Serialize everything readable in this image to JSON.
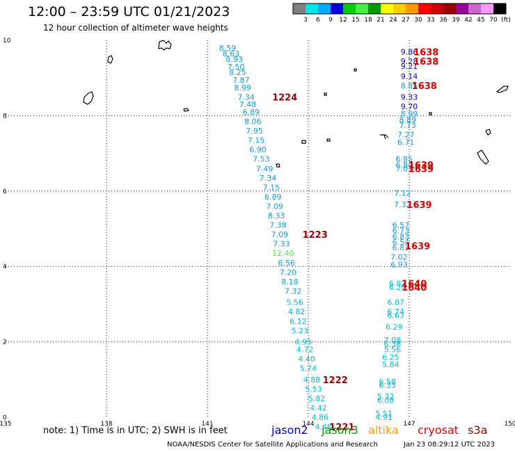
{
  "header": {
    "title": "12:00 – 23:59 UTC 01/21/2023",
    "subtitle": "12 hour collection of altimeter wave heights"
  },
  "colorbar": {
    "labels": [
      "3",
      "6",
      "9",
      "12",
      "15",
      "18",
      "21",
      "24",
      "27",
      "30",
      "33",
      "36",
      "39",
      "42",
      "45",
      "70",
      "(ft)"
    ],
    "colors": [
      "#7f7f7f",
      "#00e6e6",
      "#00aaff",
      "#0000dd",
      "#00cc00",
      "#44ee44",
      "#009900",
      "#ffff00",
      "#ffcc00",
      "#ff9900",
      "#ff0000",
      "#cc0000",
      "#990000",
      "#990099",
      "#cc66cc",
      "#ff99ff",
      "#000000"
    ]
  },
  "footer": {
    "note": "note:  1) Time is in UTC;  2) SWH is in feet",
    "credit": "NOAA/NESDIS Center for Satellite Applications and Research",
    "timestamp": "Jan 23 08:29:12 UTC 2023",
    "satellites": [
      {
        "name": "jason2",
        "color": "#0000cc"
      },
      {
        "name": "jason3",
        "color": "#009900"
      },
      {
        "name": "altika",
        "color": "#ff9900"
      },
      {
        "name": "cryosat",
        "color": "#dd0000"
      },
      {
        "name": "s3a",
        "color": "#990000"
      }
    ]
  },
  "chart_data": {
    "type": "scatter",
    "title": "12:00 – 23:59 UTC 01/21/2023",
    "subtitle": "12 hour collection of altimeter wave heights",
    "xlim": [
      135,
      150
    ],
    "ylim": [
      0,
      10
    ],
    "xticks": [
      135,
      138,
      141,
      144,
      147,
      150
    ],
    "yticks": [
      0,
      2,
      4,
      6,
      8,
      10
    ],
    "grid": true,
    "unit": "ft",
    "series": [
      {
        "name": "track-west",
        "points": [
          {
            "x": 141.6,
            "y": 9.8,
            "label": "8.59",
            "color": "#1199dd"
          },
          {
            "x": 141.7,
            "y": 9.65,
            "label": "8.63",
            "color": "#1199dd"
          },
          {
            "x": 141.8,
            "y": 9.5,
            "label": "8.93",
            "color": "#1199dd"
          },
          {
            "x": 141.85,
            "y": 9.3,
            "label": "7.50",
            "color": "#1199dd"
          },
          {
            "x": 141.9,
            "y": 9.15,
            "label": "8.25",
            "color": "#1199dd"
          },
          {
            "x": 142.0,
            "y": 8.95,
            "label": "7.87",
            "color": "#1199dd"
          },
          {
            "x": 142.05,
            "y": 8.75,
            "label": "8.99",
            "color": "#1199dd"
          },
          {
            "x": 142.15,
            "y": 8.5,
            "label": "7.34",
            "color": "#1199dd"
          },
          {
            "x": 142.2,
            "y": 8.3,
            "label": "7.48",
            "color": "#1199dd"
          },
          {
            "x": 142.3,
            "y": 8.1,
            "label": "6.89",
            "color": "#1199dd"
          },
          {
            "x": 142.35,
            "y": 7.85,
            "label": "8.06",
            "color": "#1199dd"
          },
          {
            "x": 142.4,
            "y": 7.6,
            "label": "7.95",
            "color": "#1199dd"
          },
          {
            "x": 142.45,
            "y": 7.35,
            "label": "7.15",
            "color": "#1199dd"
          },
          {
            "x": 142.5,
            "y": 7.1,
            "label": "6.90",
            "color": "#1199dd"
          },
          {
            "x": 142.6,
            "y": 6.85,
            "label": "7.53",
            "color": "#1199dd"
          },
          {
            "x": 142.7,
            "y": 6.6,
            "label": "7.49",
            "color": "#1199dd"
          },
          {
            "x": 142.8,
            "y": 6.35,
            "label": "7.34",
            "color": "#1199dd"
          },
          {
            "x": 142.9,
            "y": 6.1,
            "label": "7.15",
            "color": "#1199dd"
          },
          {
            "x": 142.95,
            "y": 5.85,
            "label": "6.89",
            "color": "#1199dd"
          },
          {
            "x": 143.0,
            "y": 5.6,
            "label": "7.09",
            "color": "#1199dd"
          },
          {
            "x": 143.05,
            "y": 5.35,
            "label": "8.33",
            "color": "#1199dd"
          },
          {
            "x": 143.1,
            "y": 5.1,
            "label": "7.38",
            "color": "#1199dd"
          },
          {
            "x": 143.15,
            "y": 4.85,
            "label": "7.09",
            "color": "#1199dd"
          },
          {
            "x": 143.2,
            "y": 4.6,
            "label": "7.33",
            "color": "#1199dd"
          },
          {
            "x": 143.25,
            "y": 4.35,
            "label": "12.40",
            "color": "#44ee44"
          },
          {
            "x": 143.35,
            "y": 4.1,
            "label": "6.56",
            "color": "#1199dd"
          },
          {
            "x": 143.4,
            "y": 3.85,
            "label": "7.20",
            "color": "#1199dd"
          },
          {
            "x": 143.45,
            "y": 3.6,
            "label": "8.18",
            "color": "#1199dd"
          },
          {
            "x": 143.55,
            "y": 3.35,
            "label": "7.32",
            "color": "#1199dd"
          },
          {
            "x": 143.6,
            "y": 3.05,
            "label": "5.56",
            "color": "#00bbdd"
          },
          {
            "x": 143.65,
            "y": 2.8,
            "label": "4.82",
            "color": "#00bbdd"
          },
          {
            "x": 143.7,
            "y": 2.55,
            "label": "6.12",
            "color": "#00bbdd"
          },
          {
            "x": 143.75,
            "y": 2.3,
            "label": "5.23",
            "color": "#00bbdd"
          },
          {
            "x": 143.85,
            "y": 2.0,
            "label": "4.95",
            "color": "#00bbdd"
          },
          {
            "x": 143.9,
            "y": 1.8,
            "label": "4.72",
            "color": "#00bbdd"
          },
          {
            "x": 143.95,
            "y": 1.55,
            "label": "4.40",
            "color": "#00bbdd"
          },
          {
            "x": 144.0,
            "y": 1.3,
            "label": "5.74",
            "color": "#00bbdd"
          },
          {
            "x": 144.1,
            "y": 1.0,
            "label": "4.88",
            "color": "#00bbdd"
          },
          {
            "x": 144.15,
            "y": 0.75,
            "label": "5.53",
            "color": "#00bbdd"
          },
          {
            "x": 144.25,
            "y": 0.5,
            "label": "5.82",
            "color": "#00bbdd"
          },
          {
            "x": 144.3,
            "y": 0.25,
            "label": "4.42",
            "color": "#00bbdd"
          },
          {
            "x": 144.35,
            "y": 0.0,
            "label": "4.86",
            "color": "#00bbdd"
          },
          {
            "x": 144.45,
            "y": -0.25,
            "label": "4.48",
            "color": "#00bbdd"
          }
        ]
      },
      {
        "name": "track-east",
        "points": [
          {
            "x": 147.0,
            "y": 9.7,
            "label": "9.86",
            "color": "#0000cc"
          },
          {
            "x": 147.0,
            "y": 9.45,
            "label": "9.28",
            "color": "#0000cc"
          },
          {
            "x": 147.0,
            "y": 9.32,
            "label": "9.21",
            "color": "#0000cc"
          },
          {
            "x": 147.0,
            "y": 9.05,
            "label": "9.14",
            "color": "#0000cc"
          },
          {
            "x": 147.0,
            "y": 8.8,
            "label": "8.85",
            "color": "#1199dd"
          },
          {
            "x": 147.0,
            "y": 8.5,
            "label": "9.33",
            "color": "#0000cc"
          },
          {
            "x": 147.0,
            "y": 8.25,
            "label": "9.70",
            "color": "#0000cc"
          },
          {
            "x": 147.0,
            "y": 8.05,
            "label": "8.99",
            "color": "#1199dd"
          },
          {
            "x": 146.95,
            "y": 7.9,
            "label": "8.89",
            "color": "#1199dd"
          },
          {
            "x": 146.95,
            "y": 7.75,
            "label": "7.73",
            "color": "#1199dd"
          },
          {
            "x": 146.9,
            "y": 7.5,
            "label": "7.27",
            "color": "#1199dd"
          },
          {
            "x": 146.9,
            "y": 7.3,
            "label": "6.71",
            "color": "#1199dd"
          },
          {
            "x": 146.85,
            "y": 6.85,
            "label": "6.85",
            "color": "#1199dd"
          },
          {
            "x": 146.85,
            "y": 6.7,
            "label": "6.84",
            "color": "#1199dd"
          },
          {
            "x": 146.85,
            "y": 6.6,
            "label": "7.01",
            "color": "#1199dd"
          },
          {
            "x": 146.8,
            "y": 5.95,
            "label": "7.12",
            "color": "#1199dd"
          },
          {
            "x": 146.8,
            "y": 5.65,
            "label": "7.32",
            "color": "#1199dd"
          },
          {
            "x": 146.75,
            "y": 5.1,
            "label": "6.57",
            "color": "#1199dd"
          },
          {
            "x": 146.75,
            "y": 4.95,
            "label": "6.73",
            "color": "#1199dd"
          },
          {
            "x": 146.75,
            "y": 4.8,
            "label": "6.83",
            "color": "#1199dd"
          },
          {
            "x": 146.75,
            "y": 4.65,
            "label": "6.54",
            "color": "#1199dd"
          },
          {
            "x": 146.75,
            "y": 4.5,
            "label": "6.83",
            "color": "#1199dd"
          },
          {
            "x": 146.7,
            "y": 4.25,
            "label": "7.02",
            "color": "#1199dd"
          },
          {
            "x": 146.7,
            "y": 4.05,
            "label": "6.93",
            "color": "#1199dd"
          },
          {
            "x": 146.65,
            "y": 3.55,
            "label": "6.82",
            "color": "#00bbdd"
          },
          {
            "x": 146.65,
            "y": 3.45,
            "label": "6.20",
            "color": "#00bbdd"
          },
          {
            "x": 146.6,
            "y": 3.05,
            "label": "6.87",
            "color": "#00bbdd"
          },
          {
            "x": 146.6,
            "y": 2.8,
            "label": "6.74",
            "color": "#00bbdd"
          },
          {
            "x": 146.6,
            "y": 2.7,
            "label": "6.63",
            "color": "#00bbdd"
          },
          {
            "x": 146.55,
            "y": 2.4,
            "label": "6.29",
            "color": "#00bbdd"
          },
          {
            "x": 146.5,
            "y": 2.05,
            "label": "7.08",
            "color": "#00bbdd"
          },
          {
            "x": 146.5,
            "y": 1.95,
            "label": "6.38",
            "color": "#00bbdd"
          },
          {
            "x": 146.5,
            "y": 1.8,
            "label": "5.56",
            "color": "#00bbdd"
          },
          {
            "x": 146.45,
            "y": 1.6,
            "label": "6.25",
            "color": "#00bbdd"
          },
          {
            "x": 146.45,
            "y": 1.4,
            "label": "5.84",
            "color": "#00bbdd"
          },
          {
            "x": 146.35,
            "y": 0.95,
            "label": "6.58",
            "color": "#00bbdd"
          },
          {
            "x": 146.35,
            "y": 0.85,
            "label": "6.33",
            "color": "#00bbdd"
          },
          {
            "x": 146.3,
            "y": 0.55,
            "label": "5.32",
            "color": "#00bbdd"
          },
          {
            "x": 146.3,
            "y": 0.45,
            "label": "6.08",
            "color": "#00bbdd"
          },
          {
            "x": 146.25,
            "y": 0.1,
            "label": "5.51",
            "color": "#00bbdd"
          },
          {
            "x": 146.25,
            "y": 0.0,
            "label": "4.91",
            "color": "#00bbdd"
          }
        ]
      }
    ],
    "annotations": [
      {
        "x": 143.3,
        "y": 8.5,
        "label": "1224",
        "color": "#990000"
      },
      {
        "x": 144.2,
        "y": 4.85,
        "label": "1223",
        "color": "#990000"
      },
      {
        "x": 144.8,
        "y": 1.0,
        "label": "1222",
        "color": "#990000"
      },
      {
        "x": 145.0,
        "y": -0.25,
        "label": "1221",
        "color": "#990000"
      },
      {
        "x": 147.5,
        "y": 9.7,
        "label": "1638",
        "color": "#dd0000"
      },
      {
        "x": 147.5,
        "y": 9.45,
        "label": "1638",
        "color": "#dd0000"
      },
      {
        "x": 147.45,
        "y": 8.8,
        "label": "1638",
        "color": "#dd0000"
      },
      {
        "x": 147.35,
        "y": 6.7,
        "label": "1639",
        "color": "#dd0000"
      },
      {
        "x": 147.35,
        "y": 6.6,
        "label": "1639",
        "color": "#dd0000"
      },
      {
        "x": 147.3,
        "y": 5.65,
        "label": "1639",
        "color": "#dd0000"
      },
      {
        "x": 147.25,
        "y": 4.55,
        "label": "1639",
        "color": "#dd0000"
      },
      {
        "x": 147.15,
        "y": 3.55,
        "label": "1640",
        "color": "#dd0000"
      },
      {
        "x": 147.15,
        "y": 3.45,
        "label": "1640",
        "color": "#dd0000"
      }
    ]
  }
}
